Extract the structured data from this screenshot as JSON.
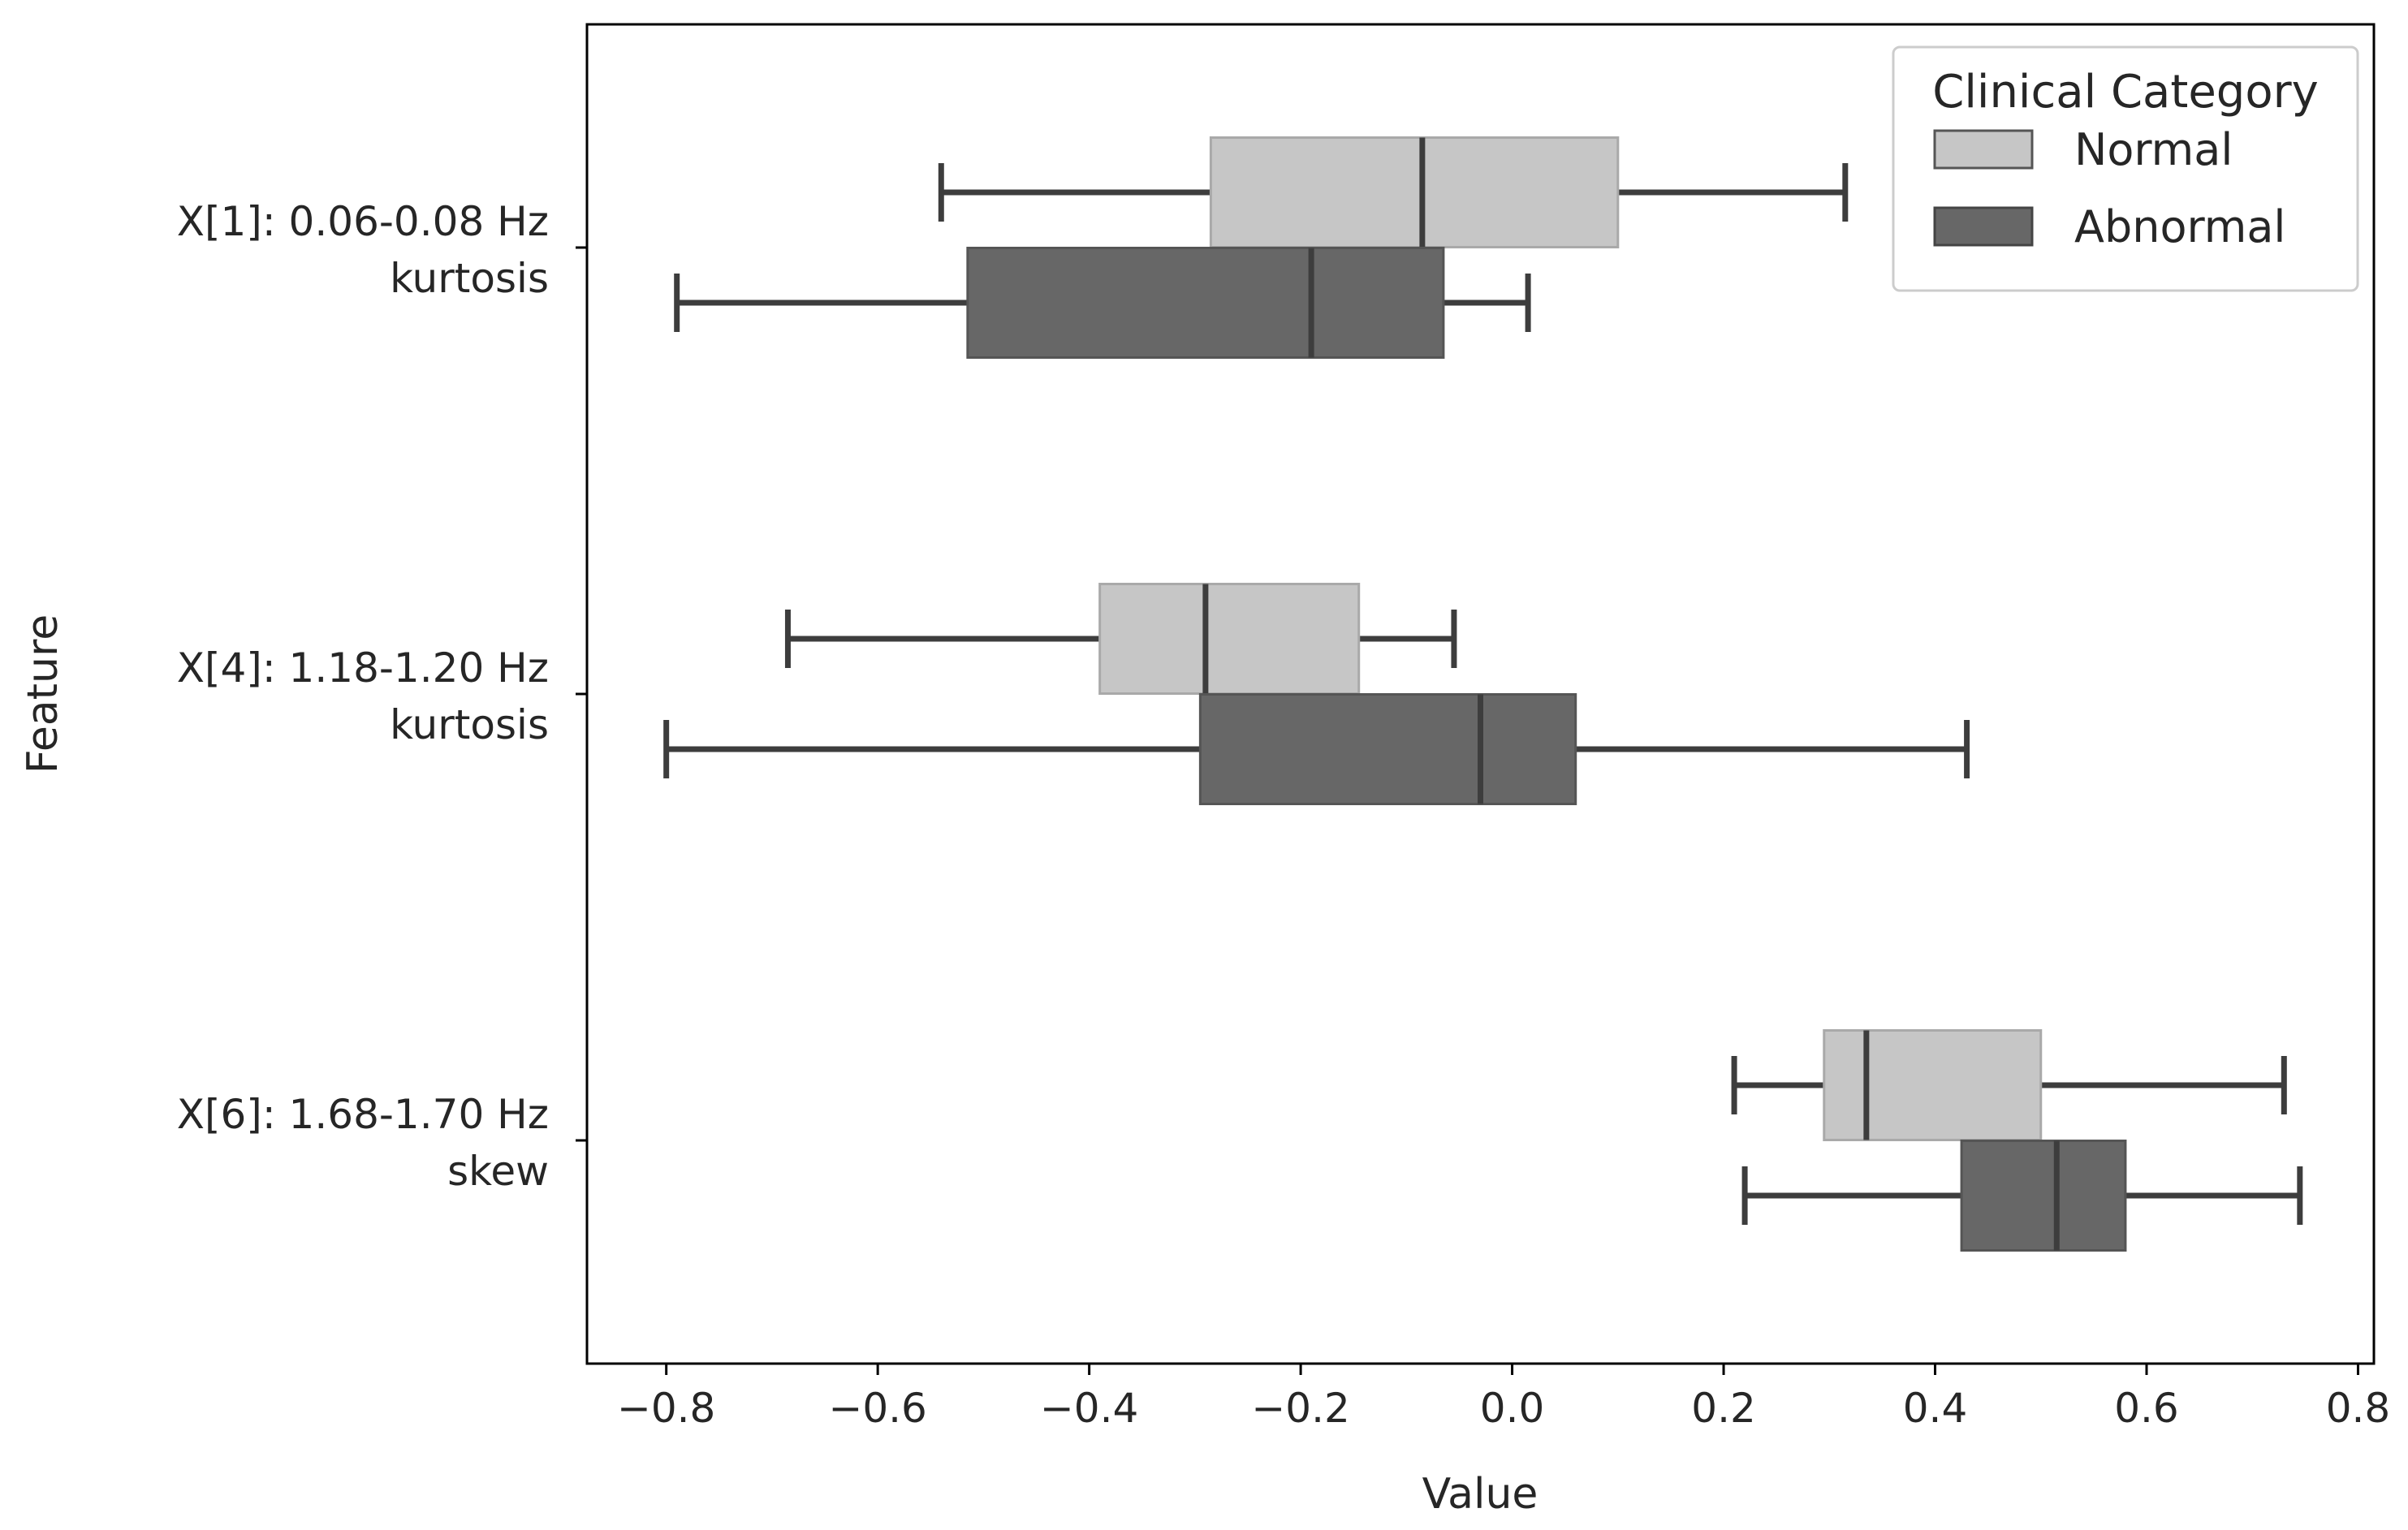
{
  "chart_data": {
    "type": "boxplot",
    "orientation": "horizontal",
    "title": "",
    "xlabel": "Value",
    "ylabel": "Feature",
    "xlim": [
      -0.875,
      0.815
    ],
    "xticks": [
      -0.8,
      -0.6,
      -0.4,
      -0.2,
      0.0,
      0.2,
      0.4,
      0.6,
      0.8
    ],
    "xtick_labels": [
      "−0.8",
      "−0.6",
      "−0.4",
      "−0.2",
      "0.0",
      "0.2",
      "0.4",
      "0.6",
      "0.8"
    ],
    "grid": false,
    "legend": {
      "title": "Clinical Category",
      "position": "top-right",
      "entries": [
        {
          "name": "Normal",
          "color": "#c6c6c6"
        },
        {
          "name": "Abnormal",
          "color": "#676767"
        }
      ]
    },
    "categories": [
      {
        "line1": "X[1]: 0.06-0.08 Hz",
        "line2": "kurtosis"
      },
      {
        "line1": "X[4]: 1.18-1.20 Hz",
        "line2": "kurtosis"
      },
      {
        "line1": "X[6]: 1.68-1.70 Hz",
        "line2": "skew"
      }
    ],
    "series": [
      {
        "name": "Normal",
        "color": "#c6c6c6",
        "boxes": [
          {
            "whislo": -0.54,
            "q1": -0.285,
            "median": -0.085,
            "q3": 0.1,
            "whishi": 0.315
          },
          {
            "whislo": -0.685,
            "q1": -0.39,
            "median": -0.29,
            "q3": -0.145,
            "whishi": -0.055
          },
          {
            "whislo": 0.21,
            "q1": 0.295,
            "median": 0.335,
            "q3": 0.5,
            "whishi": 0.73
          }
        ]
      },
      {
        "name": "Abnormal",
        "color": "#676767",
        "boxes": [
          {
            "whislo": -0.79,
            "q1": -0.515,
            "median": -0.19,
            "q3": -0.065,
            "whishi": 0.015
          },
          {
            "whislo": -0.8,
            "q1": -0.295,
            "median": -0.03,
            "q3": 0.06,
            "whishi": 0.43
          },
          {
            "whislo": 0.22,
            "q1": 0.425,
            "median": 0.515,
            "q3": 0.58,
            "whishi": 0.745
          }
        ]
      }
    ]
  }
}
